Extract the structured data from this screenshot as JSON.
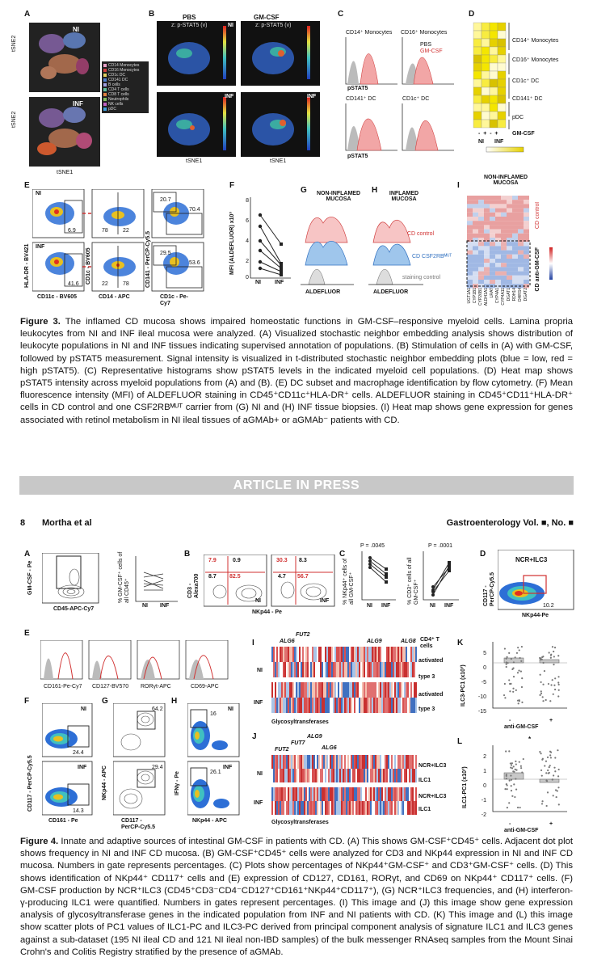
{
  "figure3": {
    "panels": {
      "A": "A",
      "B": "B",
      "C": "C",
      "D": "D",
      "E": "E",
      "F": "F",
      "G": "G",
      "H": "H",
      "I": "I"
    },
    "a_labels": {
      "ni": "NI",
      "inf": "INF",
      "tsne2_top": "tSNE2",
      "tsne2_bottom": "tSNE2",
      "tsne1": "tSNE1"
    },
    "a_legend": [
      "CD14 Monocytes",
      "CD16 Monocytes",
      "CD1c DC",
      "CD141 DC",
      "B cells",
      "CD4 T cells",
      "CD8 T cells",
      "Neutrophils",
      "NK cells",
      "pDC"
    ],
    "a_legend_colors": [
      "#e8a0c8",
      "#d04040",
      "#e0d060",
      "#5080d0",
      "#a0a0e0",
      "#60c0a0",
      "#e08040",
      "#80c060",
      "#c060c0",
      "#40a0e0"
    ],
    "b_labels": {
      "pbs": "PBS",
      "gmcsf": "GM-CSF",
      "z": "z: p-STAT5 (v)",
      "ni": "NI",
      "inf": "INF",
      "tsne2": "tSNE2",
      "tsne1": "tSNE1"
    },
    "c_labels": {
      "cd14": "CD14⁺ Monocytes",
      "cd16": "CD16⁺ Monocytes",
      "pbs": "PBS",
      "gmcsf": "GM-CSF",
      "cd141": "CD141⁺ DC",
      "cd1c": "CD1c⁺ DC",
      "pstat5a": "pSTAT5",
      "pstat5b": "pSTAT5"
    },
    "d_labels": {
      "rows": [
        "CD14⁺ Monocytes",
        "CD16⁺ Monocytes",
        "CD1c⁺ DC",
        "CD141⁺ DC",
        "pDC"
      ],
      "signs": "-  +  -  +",
      "gmcsf": "GM-CSF",
      "ni": "NI",
      "inf": "INF"
    },
    "e_labels": {
      "ni": "NI",
      "inf": "INF",
      "v1": "6.9",
      "v2": "78",
      "v3": "22",
      "v4": "20.7",
      "v5": "70.4",
      "v6": "41.6",
      "v7": "22",
      "v8": "78",
      "v9": "29.5",
      "v10": "53.6",
      "x1": "CD11c - BV605",
      "x2": "CD14 - APC",
      "x3": "CD1c - Pe-Cy7",
      "y1": "HLA-DR - BV421",
      "y2": "CD1c - BV605",
      "y3": "CD141 - PerCP-Cy5.5"
    },
    "f_labels": {
      "ylabel": "MFI (ALDEFLUOR) x10³",
      "ni": "NI",
      "inf": "INF",
      "ticks": [
        "0",
        "2",
        "4",
        "6",
        "8"
      ]
    },
    "g_labels": {
      "title": "NON-INFLAMED MUCOSA",
      "x": "ALDEFLUOR"
    },
    "h_labels": {
      "title": "INFLAMED MUCOSA",
      "x": "ALDEFLUOR",
      "cd_control": "CD control",
      "cd_csf": "CD CSF2RBᴹᵁᵀ",
      "staining": "staining control"
    },
    "i_labels": {
      "title": "NON-INFLAMED MUCOSA",
      "cd_control": "CD control",
      "cd_anti": "CD anti-GM-CSF",
      "genes": [
        "UGT1A1",
        "CYP1B1",
        "CYP26B1",
        "ALDH1A1",
        "LRAT",
        "CYP4A1",
        "CYP4A11",
        "DGAT1",
        "RDH14",
        "DHRS4",
        "DGAT2"
      ]
    },
    "caption": {
      "label": "Figure 3.",
      "text": "The inflamed CD mucosa shows impaired homeostatic functions in GM-CSF–responsive myeloid cells. Lamina propria leukocytes from NI and INF ileal mucosa were analyzed. (A) Visualized stochastic neighbor embedding analysis shows distribution of leukocyte populations in NI and INF tissues indicating supervised annotation of populations. (B) Stimulation of cells in (A) with GM-CSF, followed by pSTAT5 measurement. Signal intensity is visualized in t-distributed stochastic neighbor embedding plots (blue = low, red = high pSTAT5). (C) Representative histograms show pSTAT5 levels in the indicated myeloid cell populations. (D) Heat map shows pSTAT5 intensity across myeloid populations from (A) and (B). (E) DC subset and macrophage identification by flow cytometry. (F) Mean fluorescence intensity (MFI) of ALDEFLUOR staining in CD45⁺CD11c⁺HLA-DR⁺ cells. ALDEFLUOR staining in CD45⁺CD11⁺HLA-DR⁺ cells in CD control and one CSF2RBᴹᵁᵀ carrier from (G) NI and (H) INF tissue biopsies. (I) Heat map shows gene expression for genes associated with retinol metabolism in NI ileal tissues of aGMAb+ or aGMAb⁻ patients with CD."
    }
  },
  "banner": "ARTICLE IN PRESS",
  "header": {
    "page": "8",
    "authors": "Mortha et al",
    "journal": "Gastroenterology Vol. ■, No. ■"
  },
  "figure4": {
    "panels": {
      "A": "A",
      "B": "B",
      "C": "C",
      "D": "D",
      "E": "E",
      "F": "F",
      "G": "G",
      "H": "H",
      "I": "I",
      "J": "J",
      "K": "K",
      "L": "L"
    },
    "a_labels": {
      "y": "GM-CSF - Pe",
      "x": "CD45-APC-Cy7",
      "dot_y": "% GM-CSF⁺ cells of all CD45⁺",
      "ni": "NI",
      "inf": "INF"
    },
    "b_labels": {
      "q1": "7.9",
      "q2": "0.9",
      "q3": "8.7",
      "q4": "82.5",
      "q5": "30.3",
      "q6": "8.3",
      "q7": "4.7",
      "q8": "56.7",
      "y": "CD3 - Alexa700",
      "x": "NKp44 - Pe",
      "ni": "NI",
      "inf": "INF"
    },
    "c_labels": {
      "p1": "P = .0045",
      "p2": "P = .0001",
      "y1": "% NKp44⁺ cells of all GM-CSF⁺",
      "y2": "% CD3⁺ cells of all GM-CSF⁺",
      "ni1": "NI",
      "inf1": "INF",
      "ni2": "NI",
      "inf2": "INF"
    },
    "d_labels": {
      "title": "NCR+ILC3",
      "value": "10.2",
      "y": "CD117 - PerCP-Cy5.5",
      "x": "NKp44-Pe"
    },
    "e_labels": [
      "CD161-Pe-Cy7",
      "CD127-BV570",
      "RORγt-APC",
      "CD69-APC"
    ],
    "f_labels": {
      "ni": "NI",
      "inf": "INF",
      "v1": "24.4",
      "v2": "14.3",
      "y": "CD117 - PerCP-Cy5.5",
      "x": "CD161 - Pe"
    },
    "g_labels": {
      "v1": "64.2",
      "v2": "29.4",
      "y": "NKp44 - APC",
      "x": "CD117 - PerCP-Cy5.5"
    },
    "h_labels": {
      "ni": "NI",
      "inf": "INF",
      "v1": "16",
      "v2": "26.1",
      "y": "IFNγ - Pe",
      "x": "NKp44 - APC"
    },
    "i_labels": {
      "fut2": "FUT2",
      "alg6": "ALG6",
      "alg9": "ALG9",
      "alg8": "ALG8",
      "cd4": "CD4⁺ T cells",
      "activated1": "activated",
      "type3a": "type 3",
      "activated2": "activated",
      "type3b": "type 3",
      "ni": "NI",
      "inf": "INF",
      "footer": "Glycosyltransferases"
    },
    "j_labels": {
      "fut2": "FUT2",
      "fut7": "FUT7",
      "alg9": "ALG9",
      "alg6": "ALG6",
      "ncr1": "NCR+ILC3",
      "ilc1a": "ILC1",
      "ncr2": "NCR+ILC3",
      "ilc1b": "ILC1",
      "ni": "NI",
      "inf": "INF",
      "footer": "Glycosyltransferases"
    },
    "k_labels": {
      "y": "ILC3-PC1 (x10³)",
      "x": "anti-GM-CSF",
      "minus": "-",
      "plus": "+",
      "ticks": [
        "5",
        "0",
        "-5",
        "-10",
        "-15"
      ]
    },
    "l_labels": {
      "y": "ILC1-PC1 (x10³)",
      "x": "anti-GM-CSF",
      "minus": "-",
      "plus": "+",
      "star": "*",
      "ticks": [
        "2",
        "1",
        "0",
        "-1",
        "-2"
      ]
    },
    "caption": {
      "label": "Figure 4.",
      "text": "Innate and adaptive sources of intestinal GM-CSF in patients with CD. (A) This shows GM-CSF⁺CD45⁺ cells. Adjacent dot plot shows frequency in NI and INF CD mucosa. (B) GM-CSF⁺CD45⁺ cells were analyzed for CD3 and NKp44 expression in NI and INF CD mucosa. Numbers in gate represents percentages. (C) Plots show percentages of NKp44⁺GM-CSF⁺ and CD3⁺GM-CSF⁺ cells. (D) This shows identification of NKp44⁺ CD117⁺ cells and (E) expression of CD127, CD161, RORγt, and CD69 on NKp44⁺ CD117⁺ cells. (F) GM-CSF production by NCR⁺ILC3 (CD45⁺CD3⁻CD4⁻CD127⁺CD161⁺NKp44⁺CD117⁺), (G) NCR⁺ILC3 frequencies, and (H) interferon-γ-producing ILC1 were quantified. Numbers in gates represent percentages. (I) This image and (J) this image show gene expression analysis of glycosyltransferase genes in the indicated population from INF and NI patients with CD. (K) This image and (L) this image show scatter plots of PC1 values of ILC1-PC and ILC3-PC derived from principal component analysis of signature ILC1 and ILC3 genes against a sub-dataset (195 NI ileal CD and 121 NI ileal non-IBD samples) of the bulk messenger RNAseq samples from the Mount Sinai Crohn's and Colitis Registry stratified by the presence of aGMAb."
    }
  }
}
